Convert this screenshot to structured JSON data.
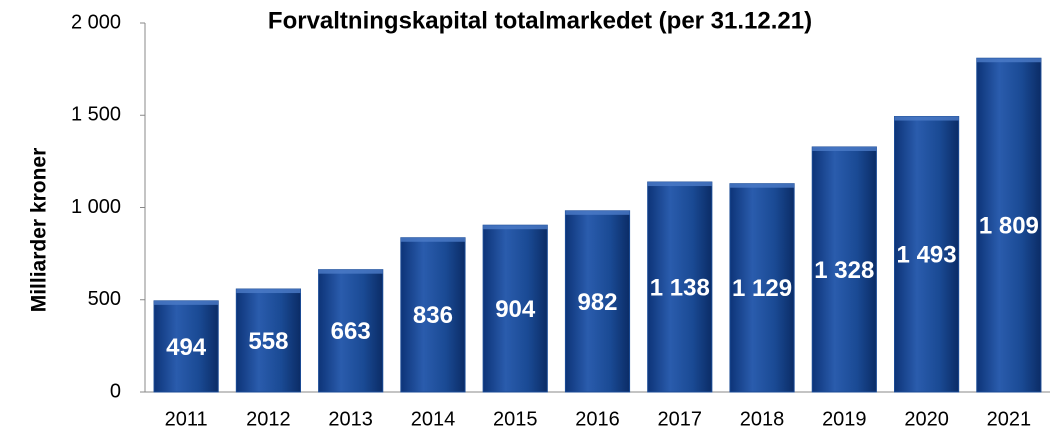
{
  "chart_data": {
    "type": "bar",
    "title": "Forvaltningskapital totalmarkedet (per 31.12.21)",
    "y_label": "Milliarder kroner",
    "categories": [
      "2011",
      "2012",
      "2013",
      "2014",
      "2015",
      "2016",
      "2017",
      "2018",
      "2019",
      "2020",
      "2021"
    ],
    "values": [
      494,
      558,
      663,
      836,
      904,
      982,
      1138,
      1129,
      1328,
      1493,
      1809
    ],
    "value_labels": [
      "494",
      "558",
      "663",
      "836",
      "904",
      "982",
      "1 138",
      "1 129",
      "1 328",
      "1 493",
      "1 809"
    ],
    "color": "#1a4a94",
    "ylim": [
      0,
      2000
    ],
    "yticks": [
      0,
      500,
      {
        "value": 1000,
        "label": "1 000"
      },
      {
        "value": 1500,
        "label": "1 500"
      },
      {
        "value": 2000,
        "label": "2 000"
      }
    ],
    "grid": false
  }
}
